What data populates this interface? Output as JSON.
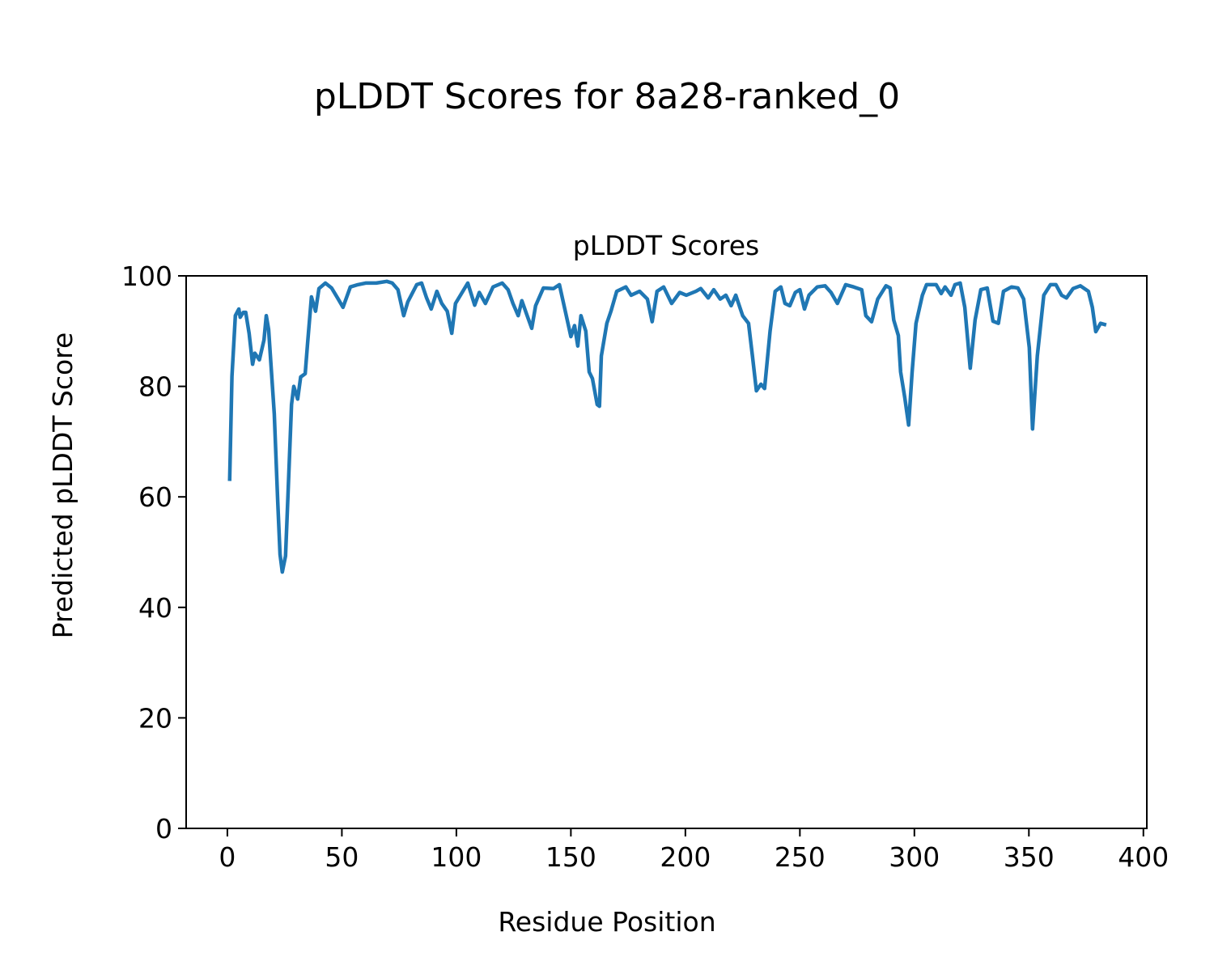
{
  "chart_data": {
    "type": "line",
    "suptitle": "pLDDT Scores for 8a28-ranked_0",
    "title": "pLDDT Scores",
    "xlabel": "Residue Position",
    "ylabel": "Predicted pLDDT Score",
    "xlim": [
      -18,
      401.5
    ],
    "ylim": [
      0,
      100
    ],
    "xticks": [
      "0",
      "50",
      "100",
      "150",
      "200",
      "250",
      "300",
      "350",
      "400"
    ],
    "yticks": [
      "0",
      "20",
      "40",
      "60",
      "80",
      "100"
    ],
    "grid": false,
    "color": "#1f77b4",
    "series": [
      {
        "name": "pLDDT",
        "x": [
          1,
          2,
          3.5,
          5,
          5.6,
          7,
          8,
          9.5,
          11,
          12,
          14,
          16,
          17,
          18,
          20.5,
          22,
          23,
          24,
          25.4,
          26.5,
          28,
          29,
          30.7,
          32,
          34,
          35,
          36.7,
          38.5,
          40,
          42.8,
          45.5,
          48.4,
          50.5,
          53.7,
          57,
          60.4,
          65,
          69.6,
          72,
          74.5,
          77,
          78.8,
          82.7,
          84.8,
          87,
          89,
          91.5,
          93.6,
          96,
          98,
          99.6,
          105,
          108,
          110,
          112.7,
          116,
          120,
          122.6,
          124.7,
          127,
          128.6,
          131,
          132.9,
          134.6,
          138,
          142.4,
          145,
          148,
          150,
          151.6,
          153,
          154.4,
          156.5,
          158,
          159.4,
          161.5,
          162.5,
          163.3,
          165.7,
          167.5,
          170,
          174,
          176.3,
          180,
          183.4,
          185.5,
          187.6,
          190.5,
          194,
          197.5,
          200.4,
          204.6,
          206.7,
          210,
          212.4,
          215.2,
          217.7,
          220,
          222,
          225,
          227.6,
          229.3,
          231,
          233,
          234.6,
          237,
          239.2,
          241.7,
          243.5,
          245.6,
          248,
          250,
          252,
          254,
          257.6,
          261,
          263.6,
          266.4,
          270,
          273.5,
          277,
          278.8,
          281.3,
          284,
          287.6,
          289.4,
          291,
          293,
          294,
          295.8,
          297.5,
          299,
          300.7,
          303.5,
          305.3,
          309.5,
          311.7,
          313.4,
          316,
          317.7,
          320,
          322,
          324.4,
          326.5,
          329,
          331.8,
          334.3,
          336.7,
          338.9,
          342.4,
          345.2,
          347.7,
          350.2,
          351.6,
          353.7,
          356.5,
          359.4,
          361.8,
          364.3,
          366.4,
          369.3,
          372.5,
          376,
          377.7,
          379.2,
          381.3,
          383
        ],
        "y": [
          63.2,
          81.8,
          92.8,
          94,
          92.5,
          93.4,
          93.4,
          89.6,
          84,
          86,
          84.8,
          88.4,
          92.8,
          90.3,
          75,
          59,
          49.6,
          46.4,
          49.3,
          60.6,
          76.7,
          80,
          77.7,
          81.7,
          82.3,
          87.7,
          96.2,
          93.6,
          97.7,
          98.7,
          97.8,
          95.8,
          94.3,
          98,
          98.4,
          98.7,
          98.7,
          99,
          98.7,
          97.5,
          92.8,
          95.3,
          98.4,
          98.7,
          96,
          94,
          97.2,
          95,
          93.6,
          89.6,
          95,
          98.7,
          94.7,
          97,
          95,
          98,
          98.7,
          97.5,
          95,
          92.8,
          95.5,
          92.7,
          90.5,
          94.6,
          97.8,
          97.7,
          98.4,
          92.8,
          89,
          91,
          87.3,
          92.8,
          90,
          82.6,
          81.4,
          76.7,
          76.4,
          85.5,
          91.4,
          93.6,
          97.2,
          98,
          96.5,
          97.2,
          95.8,
          91.7,
          97.2,
          98,
          95,
          97,
          96.5,
          97.2,
          97.7,
          96,
          97.5,
          95.8,
          96.5,
          94.6,
          96.5,
          92.8,
          91.4,
          85.5,
          79.2,
          80.4,
          79.6,
          90,
          97.2,
          98,
          95,
          94.6,
          97,
          97.5,
          94,
          96.5,
          98,
          98.2,
          97,
          95,
          98.4,
          98,
          97.5,
          92.8,
          91.7,
          95.8,
          98.2,
          97.8,
          92,
          89.2,
          82.6,
          78,
          73,
          82.6,
          91.4,
          96.5,
          98.4,
          98.4,
          96.8,
          98,
          96.5,
          98.4,
          98.7,
          94.3,
          83.3,
          92,
          97.5,
          97.8,
          91.8,
          91.4,
          97.2,
          98,
          97.8,
          95.8,
          87,
          72.3,
          85.5,
          96.5,
          98.4,
          98.4,
          96.5,
          96,
          97.7,
          98.2,
          97.2,
          94.3,
          89.9,
          91.4,
          91.2
        ]
      }
    ]
  }
}
